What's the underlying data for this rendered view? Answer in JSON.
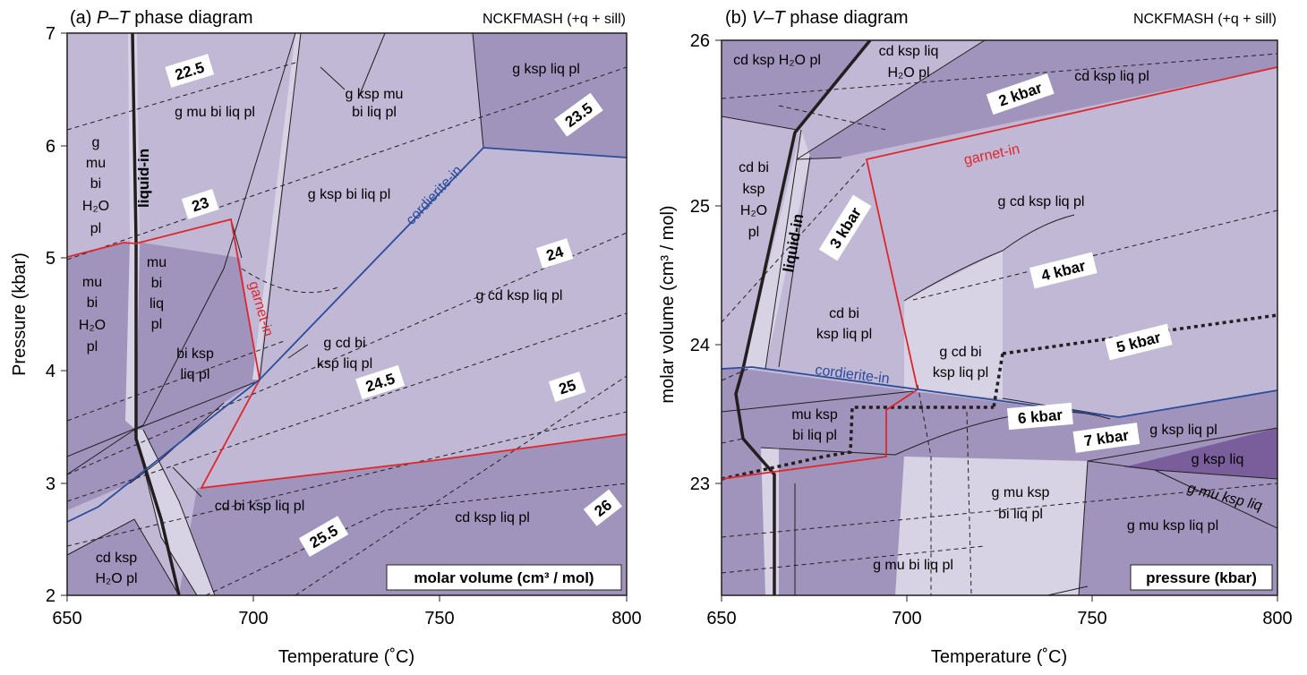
{
  "panel_a": {
    "title_prefix": "(a) ",
    "title_em": "P–T",
    "title_suffix": " phase diagram",
    "system": "NCKFMASH (+q + sill)",
    "x_label": "Temperature (˚C)",
    "y_label": "Pressure (kbar)",
    "x_ticks": [
      "650",
      "700",
      "750",
      "800"
    ],
    "y_ticks": [
      "2",
      "3",
      "4",
      "5",
      "6",
      "7"
    ],
    "legend_box": "molar volume (cm³ / mol)",
    "contours": [
      "22.5",
      "23",
      "23.5",
      "24",
      "24.5",
      "25",
      "25.5",
      "26"
    ],
    "boundaries": {
      "liquid": "liquid-in",
      "garnet": "garnet-in",
      "cordierite": "cordierite-in"
    },
    "fields": {
      "g_mu_bi_liq_pl": "g mu bi liq pl",
      "g_ksp_mu_bi_liq_pl_1": "g ksp mu",
      "g_ksp_mu_bi_liq_pl_2": "bi liq pl",
      "g_ksp_liq_pl": "g ksp liq pl",
      "g_mu_bi_h2o_pl": [
        "g",
        "mu",
        "bi",
        "H₂O",
        "pl"
      ],
      "g_ksp_bi_liq_pl": "g ksp bi liq pl",
      "mu_bi_liq_pl": [
        "mu",
        "bi",
        "liq",
        "pl"
      ],
      "mu_bi_h2o_pl": [
        "mu",
        "bi",
        "H₂O",
        "pl"
      ],
      "bi_ksp_liq_pl": [
        "bi ksp",
        "liq pl"
      ],
      "g_cd_bi_ksp_liq_pl": [
        "g cd bi",
        "ksp liq pl"
      ],
      "g_cd_ksp_liq_pl": "g cd ksp liq pl",
      "cd_bi_ksp_liq_pl": "cd bi ksp liq pl",
      "cd_ksp_liq_pl": "cd ksp liq pl",
      "cd_ksp_h2o_pl": [
        "cd ksp",
        "H₂O pl"
      ]
    }
  },
  "panel_b": {
    "title_prefix": "(b) ",
    "title_em": "V–T",
    "title_suffix": " phase diagram",
    "system": "NCKFMASH (+q + sill)",
    "x_label": "Temperature (˚C)",
    "y_label": "molar volume (cm³ / mol)",
    "x_ticks": [
      "650",
      "700",
      "750",
      "800"
    ],
    "y_ticks": [
      "23",
      "24",
      "25",
      "26"
    ],
    "legend_box": "pressure (kbar)",
    "isobars": [
      "2 kbar",
      "3 kbar",
      "4 kbar",
      "5 kbar",
      "6 kbar",
      "7 kbar"
    ],
    "boundaries": {
      "liquid": "liquid-in",
      "garnet": "garnet-in",
      "cordierite": "cordierite-in"
    },
    "fields": {
      "cd_ksp_h2o_pl": "cd ksp H₂O pl",
      "cd_ksp_liq_h2o_pl": [
        "cd ksp liq",
        "H₂O pl"
      ],
      "cd_ksp_liq_pl": "cd ksp liq pl",
      "cd_bi_ksp_h2o_pl": [
        "cd bi",
        "ksp",
        "H₂O",
        "pl"
      ],
      "g_cd_ksp_liq_pl": "g cd ksp liq pl",
      "cd_bi_ksp_liq_pl": [
        "cd bi",
        "ksp liq pl"
      ],
      "g_cd_bi_ksp_liq_pl": [
        "g cd bi",
        "ksp liq pl"
      ],
      "mu_ksp_bi_liq_pl": [
        "mu ksp",
        "bi liq pl"
      ],
      "g_ksp_liq_pl": "g ksp liq pl",
      "g_ksp_liq": "g ksp liq",
      "g_mu_ksp_liq": "g mu ksp liq",
      "g_mu_ksp_bi_liq_pl": [
        "g mu ksp",
        "bi liq pl"
      ],
      "g_mu_ksp_liq_pl": "g mu ksp liq pl",
      "g_mu_bi_liq_pl": "g mu bi liq pl"
    }
  },
  "colors": {
    "light": "#c0b8d4",
    "lighter": "#d7d2e4",
    "medium": "#a094bc",
    "dark": "#7a5e9c",
    "garnet": "#e0262a",
    "cordierite": "#2b4b9c"
  }
}
